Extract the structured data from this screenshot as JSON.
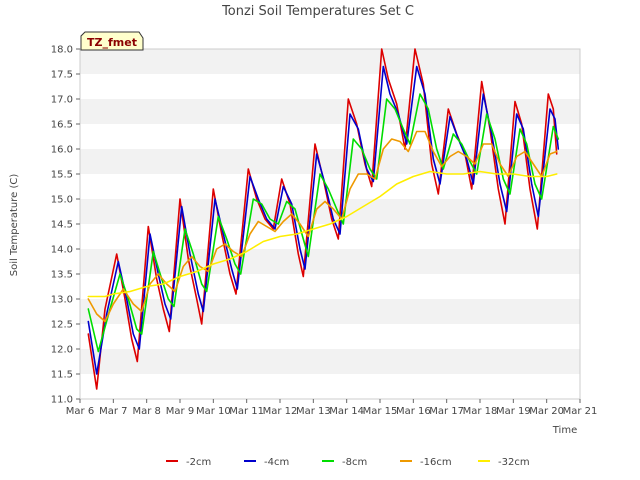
{
  "chart_data": {
    "type": "line",
    "title": "Tonzi Soil Temperatures Set C",
    "xlabel": "Time",
    "ylabel": "Soil Temperature (C)",
    "badge": "TZ_fmet",
    "xlim": [
      6,
      21
    ],
    "ylim": [
      11.0,
      18.0
    ],
    "x_ticks": [
      6,
      7,
      8,
      9,
      10,
      11,
      12,
      13,
      14,
      15,
      16,
      17,
      18,
      19,
      20,
      21
    ],
    "x_tick_labels": [
      "Mar 6",
      "Mar 7",
      "Mar 8",
      "Mar 9",
      "Mar 10",
      "Mar 11",
      "Mar 12",
      "Mar 13",
      "Mar 14",
      "Mar 15",
      "Mar 16",
      "Mar 17",
      "Mar 18",
      "Mar 19",
      "Mar 20",
      "Mar 21"
    ],
    "y_ticks": [
      11.0,
      11.5,
      12.0,
      12.5,
      13.0,
      13.5,
      14.0,
      14.5,
      15.0,
      15.5,
      16.0,
      16.5,
      17.0,
      17.5,
      18.0
    ],
    "y_tick_labels": [
      "11.0",
      "11.5",
      "12.0",
      "12.5",
      "13.0",
      "13.5",
      "14.0",
      "14.5",
      "15.0",
      "15.5",
      "16.0",
      "16.5",
      "17.0",
      "17.5",
      "18.0"
    ],
    "grid": "horizontal bands",
    "legend_position": "bottom-center",
    "series": [
      {
        "name": "-2cm",
        "color": "#dd0000",
        "points": [
          [
            6.25,
            12.3
          ],
          [
            6.5,
            11.2
          ],
          [
            6.75,
            12.8
          ],
          [
            7.1,
            13.9
          ],
          [
            7.35,
            13.0
          ],
          [
            7.55,
            12.2
          ],
          [
            7.72,
            11.75
          ],
          [
            8.05,
            14.45
          ],
          [
            8.3,
            13.4
          ],
          [
            8.5,
            12.8
          ],
          [
            8.68,
            12.35
          ],
          [
            9.0,
            15.0
          ],
          [
            9.25,
            13.8
          ],
          [
            9.5,
            13.0
          ],
          [
            9.65,
            12.5
          ],
          [
            10.0,
            15.2
          ],
          [
            10.25,
            14.3
          ],
          [
            10.5,
            13.5
          ],
          [
            10.68,
            13.1
          ],
          [
            11.05,
            15.6
          ],
          [
            11.3,
            15.0
          ],
          [
            11.55,
            14.6
          ],
          [
            11.8,
            14.4
          ],
          [
            12.05,
            15.4
          ],
          [
            12.3,
            14.9
          ],
          [
            12.55,
            13.9
          ],
          [
            12.7,
            13.45
          ],
          [
            13.05,
            16.1
          ],
          [
            13.3,
            15.4
          ],
          [
            13.55,
            14.6
          ],
          [
            13.75,
            14.2
          ],
          [
            14.05,
            17.0
          ],
          [
            14.3,
            16.5
          ],
          [
            14.55,
            15.7
          ],
          [
            14.75,
            15.25
          ],
          [
            15.05,
            18.0
          ],
          [
            15.25,
            17.4
          ],
          [
            15.5,
            16.9
          ],
          [
            15.75,
            16.0
          ],
          [
            16.05,
            18.0
          ],
          [
            16.3,
            17.3
          ],
          [
            16.55,
            15.7
          ],
          [
            16.75,
            15.1
          ],
          [
            17.05,
            16.8
          ],
          [
            17.3,
            16.3
          ],
          [
            17.55,
            15.9
          ],
          [
            17.75,
            15.2
          ],
          [
            18.05,
            17.35
          ],
          [
            18.3,
            16.4
          ],
          [
            18.55,
            15.2
          ],
          [
            18.75,
            14.5
          ],
          [
            19.05,
            16.95
          ],
          [
            19.25,
            16.5
          ],
          [
            19.5,
            15.2
          ],
          [
            19.72,
            14.4
          ],
          [
            20.05,
            17.1
          ],
          [
            20.2,
            16.8
          ],
          [
            20.3,
            15.9
          ]
        ]
      },
      {
        "name": "-4cm",
        "color": "#0000cc",
        "points": [
          [
            6.25,
            12.55
          ],
          [
            6.5,
            11.5
          ],
          [
            6.8,
            12.7
          ],
          [
            7.15,
            13.75
          ],
          [
            7.4,
            13.0
          ],
          [
            7.6,
            12.3
          ],
          [
            7.78,
            12.0
          ],
          [
            8.1,
            14.3
          ],
          [
            8.35,
            13.5
          ],
          [
            8.55,
            12.9
          ],
          [
            8.72,
            12.6
          ],
          [
            9.05,
            14.85
          ],
          [
            9.3,
            13.9
          ],
          [
            9.55,
            13.1
          ],
          [
            9.7,
            12.75
          ],
          [
            10.05,
            15.0
          ],
          [
            10.3,
            14.3
          ],
          [
            10.55,
            13.6
          ],
          [
            10.72,
            13.2
          ],
          [
            11.1,
            15.45
          ],
          [
            11.35,
            15.0
          ],
          [
            11.6,
            14.6
          ],
          [
            11.85,
            14.4
          ],
          [
            12.1,
            15.25
          ],
          [
            12.35,
            14.9
          ],
          [
            12.6,
            14.0
          ],
          [
            12.75,
            13.6
          ],
          [
            13.1,
            15.9
          ],
          [
            13.35,
            15.3
          ],
          [
            13.6,
            14.6
          ],
          [
            13.8,
            14.3
          ],
          [
            14.1,
            16.7
          ],
          [
            14.35,
            16.4
          ],
          [
            14.6,
            15.6
          ],
          [
            14.8,
            15.35
          ],
          [
            15.1,
            17.65
          ],
          [
            15.3,
            17.1
          ],
          [
            15.55,
            16.7
          ],
          [
            15.8,
            16.1
          ],
          [
            16.1,
            17.65
          ],
          [
            16.35,
            17.1
          ],
          [
            16.6,
            15.8
          ],
          [
            16.8,
            15.3
          ],
          [
            17.1,
            16.65
          ],
          [
            17.35,
            16.2
          ],
          [
            17.6,
            15.8
          ],
          [
            17.8,
            15.3
          ],
          [
            18.1,
            17.1
          ],
          [
            18.35,
            16.3
          ],
          [
            18.6,
            15.3
          ],
          [
            18.8,
            14.75
          ],
          [
            19.1,
            16.7
          ],
          [
            19.3,
            16.4
          ],
          [
            19.55,
            15.3
          ],
          [
            19.75,
            14.65
          ],
          [
            20.1,
            16.8
          ],
          [
            20.25,
            16.6
          ],
          [
            20.35,
            16.0
          ]
        ]
      },
      {
        "name": "-8cm",
        "color": "#00dd00",
        "points": [
          [
            6.25,
            12.8
          ],
          [
            6.55,
            11.95
          ],
          [
            6.9,
            12.8
          ],
          [
            7.2,
            13.5
          ],
          [
            7.45,
            13.0
          ],
          [
            7.7,
            12.4
          ],
          [
            7.85,
            12.3
          ],
          [
            8.2,
            13.95
          ],
          [
            8.45,
            13.4
          ],
          [
            8.65,
            13.0
          ],
          [
            8.82,
            12.85
          ],
          [
            9.15,
            14.4
          ],
          [
            9.4,
            13.9
          ],
          [
            9.65,
            13.3
          ],
          [
            9.8,
            13.15
          ],
          [
            10.15,
            14.65
          ],
          [
            10.4,
            14.2
          ],
          [
            10.65,
            13.7
          ],
          [
            10.82,
            13.5
          ],
          [
            11.2,
            15.0
          ],
          [
            11.45,
            14.9
          ],
          [
            11.7,
            14.6
          ],
          [
            11.95,
            14.5
          ],
          [
            12.2,
            14.95
          ],
          [
            12.45,
            14.8
          ],
          [
            12.7,
            14.2
          ],
          [
            12.85,
            13.85
          ],
          [
            13.2,
            15.5
          ],
          [
            13.45,
            15.2
          ],
          [
            13.7,
            14.8
          ],
          [
            13.9,
            14.5
          ],
          [
            14.2,
            16.2
          ],
          [
            14.45,
            16.0
          ],
          [
            14.7,
            15.6
          ],
          [
            14.9,
            15.4
          ],
          [
            15.2,
            17.0
          ],
          [
            15.45,
            16.8
          ],
          [
            15.7,
            16.4
          ],
          [
            15.9,
            16.1
          ],
          [
            16.2,
            17.1
          ],
          [
            16.45,
            16.8
          ],
          [
            16.7,
            16.0
          ],
          [
            16.9,
            15.6
          ],
          [
            17.2,
            16.3
          ],
          [
            17.45,
            16.1
          ],
          [
            17.7,
            15.75
          ],
          [
            17.9,
            15.5
          ],
          [
            18.2,
            16.7
          ],
          [
            18.45,
            16.2
          ],
          [
            18.7,
            15.4
          ],
          [
            18.9,
            15.1
          ],
          [
            19.2,
            16.4
          ],
          [
            19.4,
            16.1
          ],
          [
            19.65,
            15.3
          ],
          [
            19.85,
            15.0
          ],
          [
            20.2,
            16.45
          ],
          [
            20.35,
            16.2
          ]
        ]
      },
      {
        "name": "-16cm",
        "color": "#ee9900",
        "points": [
          [
            6.25,
            13.0
          ],
          [
            6.5,
            12.7
          ],
          [
            6.75,
            12.55
          ],
          [
            7.0,
            12.9
          ],
          [
            7.3,
            13.2
          ],
          [
            7.6,
            12.9
          ],
          [
            7.85,
            12.75
          ],
          [
            8.1,
            13.3
          ],
          [
            8.35,
            13.5
          ],
          [
            8.6,
            13.3
          ],
          [
            8.85,
            13.15
          ],
          [
            9.1,
            13.65
          ],
          [
            9.35,
            13.85
          ],
          [
            9.6,
            13.65
          ],
          [
            9.85,
            13.55
          ],
          [
            10.1,
            14.0
          ],
          [
            10.35,
            14.1
          ],
          [
            10.6,
            13.95
          ],
          [
            10.85,
            13.85
          ],
          [
            11.1,
            14.3
          ],
          [
            11.35,
            14.55
          ],
          [
            11.6,
            14.45
          ],
          [
            11.85,
            14.35
          ],
          [
            12.1,
            14.55
          ],
          [
            12.35,
            14.7
          ],
          [
            12.6,
            14.5
          ],
          [
            12.85,
            14.25
          ],
          [
            13.1,
            14.8
          ],
          [
            13.35,
            14.95
          ],
          [
            13.6,
            14.8
          ],
          [
            13.85,
            14.6
          ],
          [
            14.1,
            15.2
          ],
          [
            14.35,
            15.5
          ],
          [
            14.6,
            15.5
          ],
          [
            14.85,
            15.4
          ],
          [
            15.1,
            16.0
          ],
          [
            15.35,
            16.2
          ],
          [
            15.6,
            16.15
          ],
          [
            15.85,
            15.95
          ],
          [
            16.1,
            16.35
          ],
          [
            16.35,
            16.35
          ],
          [
            16.6,
            15.95
          ],
          [
            16.85,
            15.65
          ],
          [
            17.1,
            15.85
          ],
          [
            17.35,
            15.95
          ],
          [
            17.6,
            15.85
          ],
          [
            17.85,
            15.7
          ],
          [
            18.1,
            16.1
          ],
          [
            18.35,
            16.1
          ],
          [
            18.6,
            15.7
          ],
          [
            18.85,
            15.45
          ],
          [
            19.1,
            15.85
          ],
          [
            19.35,
            15.95
          ],
          [
            19.6,
            15.7
          ],
          [
            19.85,
            15.45
          ],
          [
            20.1,
            15.9
          ],
          [
            20.3,
            15.95
          ]
        ]
      },
      {
        "name": "-32cm",
        "color": "#ffee00",
        "points": [
          [
            6.25,
            13.05
          ],
          [
            6.75,
            13.05
          ],
          [
            7.0,
            13.1
          ],
          [
            7.5,
            13.15
          ],
          [
            8.0,
            13.25
          ],
          [
            8.5,
            13.3
          ],
          [
            9.0,
            13.45
          ],
          [
            9.5,
            13.55
          ],
          [
            10.0,
            13.7
          ],
          [
            10.5,
            13.8
          ],
          [
            11.0,
            13.95
          ],
          [
            11.5,
            14.15
          ],
          [
            12.0,
            14.25
          ],
          [
            12.5,
            14.3
          ],
          [
            13.0,
            14.4
          ],
          [
            13.5,
            14.5
          ],
          [
            14.0,
            14.65
          ],
          [
            14.5,
            14.85
          ],
          [
            15.0,
            15.05
          ],
          [
            15.5,
            15.3
          ],
          [
            16.0,
            15.45
          ],
          [
            16.5,
            15.55
          ],
          [
            17.0,
            15.5
          ],
          [
            17.5,
            15.5
          ],
          [
            18.0,
            15.55
          ],
          [
            18.5,
            15.5
          ],
          [
            19.0,
            15.5
          ],
          [
            19.5,
            15.45
          ],
          [
            20.0,
            15.45
          ],
          [
            20.3,
            15.5
          ]
        ]
      }
    ]
  }
}
